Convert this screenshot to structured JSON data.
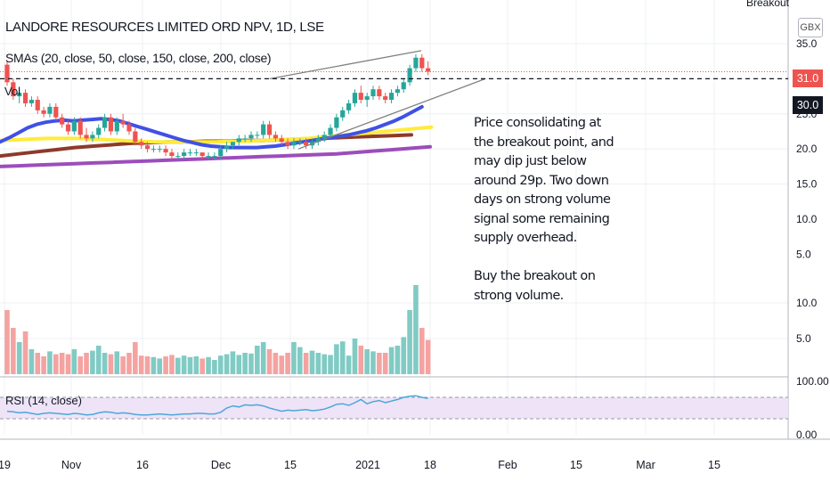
{
  "header": {
    "title": "LANDORE RESOURCES LIMITED ORD NPV, 1D, LSE",
    "study": "SMAs (20, close, 50, close, 150, close, 200, close)",
    "corner_text": "Breakout",
    "currency": "GBX",
    "vol_label": "Vol"
  },
  "note_text": "Price consolidating at\nthe breakout point, and\nmay dip just below\naround 29p. Two down\ndays on strong volume\nsignal some remaining\nsupply overhead.\n\nBuy the breakout on\nstrong volume.",
  "rsi_label": "RSI (14, close)",
  "price_tags": {
    "last": "31.0",
    "level": "30.0"
  },
  "colors": {
    "up": "#26a69a",
    "down": "#ef5350",
    "vol_up": "#80cbc4",
    "vol_down": "#f4a3a1",
    "sma20": "#3f51e5",
    "sma50": "#ffeb3b",
    "sma150": "#8d3a2a",
    "sma200": "#9c4dbb",
    "rsi": "#4aa8d8",
    "rsi_band": "#efe3f8",
    "grid": "#eef0f3"
  },
  "chart_data": {
    "type": "candlestick",
    "price_axis": {
      "min": 0,
      "max": 35,
      "ticks": [
        5.0,
        10.0,
        15.0,
        20.0,
        25.0,
        30.0,
        35.0
      ],
      "tick_labels": [
        "5.0",
        "10.0",
        "15.0",
        "20.0",
        "25.0",
        "30.0",
        "35.0"
      ],
      "log_scale": false
    },
    "x_axis": {
      "ticks": [
        "19",
        "Nov",
        "16",
        "Dec",
        "15",
        "2021",
        "18",
        "Feb",
        "15",
        "Mar",
        "15"
      ]
    },
    "breakout_level": 30.0,
    "last_price": 31.0,
    "candles": [
      [
        32.0,
        32.5,
        29.0,
        29.5
      ],
      [
        29.5,
        30.0,
        27.0,
        27.5
      ],
      [
        27.5,
        28.5,
        26.5,
        28.0
      ],
      [
        28.0,
        28.5,
        26.0,
        26.5
      ],
      [
        26.5,
        27.5,
        26.0,
        27.0
      ],
      [
        27.0,
        27.5,
        25.0,
        25.5
      ],
      [
        25.5,
        26.0,
        24.5,
        25.0
      ],
      [
        25.0,
        26.5,
        24.5,
        26.0
      ],
      [
        26.0,
        26.5,
        24.0,
        24.5
      ],
      [
        24.5,
        25.0,
        23.0,
        23.5
      ],
      [
        23.5,
        24.0,
        22.0,
        22.5
      ],
      [
        22.5,
        24.5,
        22.0,
        24.0
      ],
      [
        24.0,
        24.5,
        21.5,
        22.0
      ],
      [
        22.0,
        23.0,
        21.0,
        21.5
      ],
      [
        21.5,
        22.5,
        21.0,
        22.0
      ],
      [
        22.0,
        23.5,
        21.5,
        23.0
      ],
      [
        23.0,
        25.0,
        22.5,
        24.5
      ],
      [
        24.5,
        25.0,
        22.0,
        22.5
      ],
      [
        22.5,
        24.5,
        22.0,
        24.0
      ],
      [
        24.0,
        25.0,
        23.0,
        23.5
      ],
      [
        23.5,
        24.0,
        22.0,
        22.5
      ],
      [
        22.5,
        23.0,
        20.5,
        21.0
      ],
      [
        21.0,
        21.5,
        20.0,
        20.5
      ],
      [
        20.5,
        21.0,
        19.5,
        20.0
      ],
      [
        20.0,
        20.5,
        19.5,
        20.0
      ],
      [
        20.0,
        20.5,
        19.5,
        20.0
      ],
      [
        20.0,
        20.5,
        19.0,
        19.5
      ],
      [
        19.5,
        20.0,
        18.5,
        19.0
      ],
      [
        19.0,
        19.5,
        18.5,
        19.0
      ],
      [
        19.0,
        20.0,
        18.5,
        19.5
      ],
      [
        19.5,
        20.0,
        19.0,
        19.5
      ],
      [
        19.5,
        20.0,
        19.0,
        19.5
      ],
      [
        19.5,
        19.5,
        18.5,
        19.0
      ],
      [
        19.0,
        19.5,
        18.5,
        19.0
      ],
      [
        19.0,
        19.5,
        18.5,
        19.0
      ],
      [
        19.0,
        20.5,
        18.5,
        20.0
      ],
      [
        20.0,
        21.0,
        19.5,
        20.5
      ],
      [
        20.5,
        21.0,
        20.0,
        21.0
      ],
      [
        21.0,
        22.0,
        20.5,
        21.5
      ],
      [
        21.5,
        22.0,
        21.0,
        21.5
      ],
      [
        21.5,
        22.5,
        21.0,
        22.0
      ],
      [
        22.0,
        22.5,
        21.5,
        22.0
      ],
      [
        22.0,
        24.0,
        21.5,
        23.5
      ],
      [
        23.5,
        24.0,
        21.5,
        22.0
      ],
      [
        22.0,
        22.5,
        21.0,
        21.5
      ],
      [
        21.5,
        22.0,
        20.5,
        21.0
      ],
      [
        21.0,
        21.5,
        20.0,
        20.5
      ],
      [
        20.5,
        21.5,
        20.0,
        21.0
      ],
      [
        21.0,
        21.5,
        20.5,
        21.0
      ],
      [
        21.0,
        21.5,
        20.0,
        20.5
      ],
      [
        20.5,
        21.5,
        20.0,
        21.0
      ],
      [
        21.0,
        22.0,
        20.5,
        21.5
      ],
      [
        21.5,
        22.5,
        21.0,
        22.0
      ],
      [
        22.0,
        23.5,
        21.5,
        23.0
      ],
      [
        23.0,
        25.0,
        22.5,
        24.5
      ],
      [
        24.5,
        26.0,
        24.0,
        25.5
      ],
      [
        25.5,
        27.0,
        25.0,
        26.5
      ],
      [
        26.5,
        28.5,
        26.0,
        28.0
      ],
      [
        28.0,
        29.0,
        26.5,
        27.0
      ],
      [
        27.0,
        28.0,
        26.0,
        27.5
      ],
      [
        27.5,
        29.0,
        27.0,
        28.5
      ],
      [
        28.5,
        29.0,
        27.0,
        27.5
      ],
      [
        27.5,
        28.0,
        26.5,
        27.0
      ],
      [
        27.0,
        28.5,
        26.5,
        28.0
      ],
      [
        28.0,
        29.0,
        27.5,
        28.5
      ],
      [
        28.5,
        30.0,
        28.0,
        29.5
      ],
      [
        29.5,
        32.0,
        29.0,
        31.5
      ],
      [
        31.5,
        33.5,
        31.0,
        33.0
      ],
      [
        33.0,
        33.5,
        31.0,
        31.5
      ],
      [
        31.5,
        32.5,
        30.5,
        31.0
      ]
    ],
    "volume_axis": {
      "ticks": [
        5.0,
        10.0
      ],
      "tick_labels": [
        "5.0",
        "10.0"
      ]
    },
    "volume": [
      9.0,
      6.5,
      4.5,
      6.0,
      3.5,
      3.0,
      2.5,
      3.2,
      2.8,
      3.0,
      2.8,
      3.5,
      2.5,
      3.0,
      3.3,
      4.0,
      3.0,
      2.8,
      3.2,
      2.5,
      3.0,
      4.5,
      2.6,
      2.5,
      2.4,
      2.2,
      2.5,
      2.7,
      2.3,
      2.6,
      2.4,
      2.5,
      2.2,
      2.4,
      2.0,
      2.6,
      2.8,
      3.2,
      2.7,
      3.0,
      2.9,
      4.0,
      4.5,
      3.5,
      3.0,
      2.6,
      3.0,
      4.5,
      3.8,
      3.0,
      3.3,
      3.0,
      2.8,
      2.7,
      4.2,
      4.6,
      2.6,
      5.0,
      4.0,
      3.5,
      3.2,
      3.0,
      3.0,
      3.8,
      4.0,
      5.2,
      9.0,
      12.5,
      6.5,
      4.8
    ],
    "sma20": [
      21.0,
      21.6,
      22.3,
      23.0,
      23.5,
      23.8,
      24.0,
      24.1,
      24.0,
      24.1,
      24.2,
      24.3,
      24.2,
      24.0,
      23.6,
      23.2,
      22.8,
      22.4,
      22.0,
      21.6,
      21.2,
      20.9,
      20.6,
      20.4,
      20.3,
      20.2,
      20.2,
      20.2,
      20.2,
      20.3,
      20.4,
      20.6,
      20.8,
      21.0,
      21.2,
      21.4,
      21.6,
      21.8,
      22.0,
      22.3,
      22.6,
      23.0,
      23.5,
      24.0,
      24.6,
      25.3,
      26.0
    ],
    "sma20_start": 0,
    "sma50": [
      21.2,
      21.3,
      21.4,
      21.5,
      21.5,
      21.5,
      21.4,
      21.3,
      21.2,
      21.1,
      21.0,
      21.0,
      21.0,
      21.0,
      21.0,
      21.1,
      21.1,
      21.2,
      21.3,
      21.4,
      21.5,
      21.7,
      21.9,
      22.1,
      22.3,
      22.5,
      22.7,
      22.9,
      23.1
    ],
    "sma150": [
      19.0,
      19.3,
      19.6,
      19.9,
      20.2,
      20.4,
      20.6,
      20.8,
      20.9,
      21.0,
      21.0,
      21.1,
      21.1,
      21.2,
      21.2,
      21.3,
      21.4,
      21.5,
      21.6,
      21.7,
      21.8,
      21.9,
      22.0
    ],
    "sma200": [
      17.5,
      17.6,
      17.7,
      17.8,
      17.9,
      18.0,
      18.1,
      18.2,
      18.3,
      18.4,
      18.5,
      18.6,
      18.7,
      18.8,
      18.9,
      19.0,
      19.1,
      19.2,
      19.3,
      19.5,
      19.7,
      19.9,
      20.1,
      20.3
    ],
    "rsi_axis": {
      "ticks": [
        0.0,
        100.0
      ],
      "tick_labels": [
        "0.00",
        "100.00"
      ],
      "band": [
        30,
        70
      ]
    },
    "rsi": [
      44,
      43,
      41,
      42,
      40,
      38,
      40,
      41,
      40,
      39,
      38,
      40,
      39,
      37,
      38,
      41,
      43,
      42,
      40,
      41,
      40,
      38,
      37,
      37,
      38,
      39,
      38,
      37,
      38,
      39,
      39,
      40,
      40,
      39,
      39,
      42,
      50,
      54,
      52,
      56,
      55,
      56,
      54,
      50,
      47,
      44,
      46,
      45,
      46,
      47,
      45,
      46,
      48,
      52,
      57,
      58,
      55,
      60,
      66,
      58,
      62,
      64,
      60,
      63,
      66,
      70,
      72,
      73,
      70,
      68
    ],
    "trendline_upper": {
      "from": 30.0,
      "to": 34.0
    },
    "trendline_lower": {
      "from": 20.0,
      "to": 30.0
    }
  }
}
